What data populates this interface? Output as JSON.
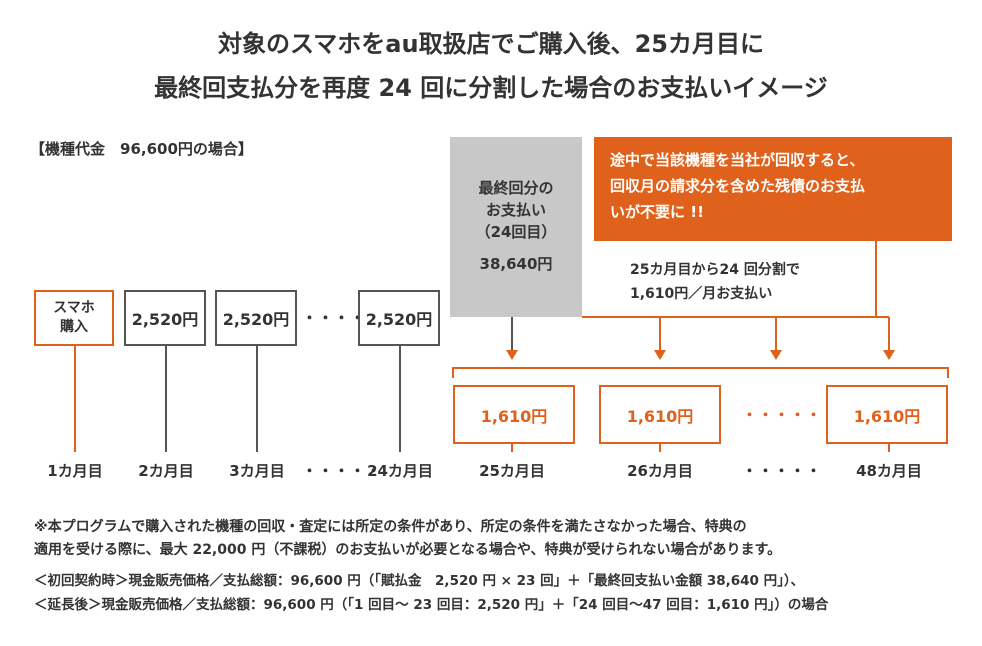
{
  "title": {
    "line1": "対象のスマホをau取扱店でご購入後、25カ月目に",
    "line2": "最終回支払分を再度 24 回に分割した場合のお支払いイメージ"
  },
  "case_label": "【機種代金　96,600円の場合】",
  "purchase_box": {
    "line1": "スマホ",
    "line2": "購入"
  },
  "payments": {
    "box1": "2,520円",
    "box2": "2,520円",
    "box3": "2,520円",
    "dots": "・・・・・"
  },
  "final_payment": {
    "line1": "最終回分の",
    "line2": "お支払い",
    "line3": "（24回目）",
    "amount": "38,640円"
  },
  "notice": {
    "line1": "途中で当該機種を当社が回収すると、",
    "line2": "回収月の請求分を含めた残債のお支払",
    "line3": "いが不要に !!"
  },
  "split_plan": {
    "line1": "25カ月目から24 回分割で",
    "line2": "1,610円／月お支払い"
  },
  "installments": {
    "box1": "1,610円",
    "box2": "1,610円",
    "box3": "1,610円",
    "dots": "・・・・・"
  },
  "months": {
    "m1": "1カ月目",
    "m2": "2カ月目",
    "m3": "3カ月目",
    "dots_left": "・・・・・",
    "m24": "24カ月目",
    "m25": "25カ月目",
    "m26": "26カ月目",
    "dots_right": "・・・・・",
    "m48": "48カ月目"
  },
  "footnotes": {
    "line1": "※本プログラムで購入された機種の回収・査定には所定の条件があり、所定の条件を満たさなかった場合、特典の",
    "line2": "適用を受ける際に、最大 22,000 円（不課税）のお支払いが必要となる場合や、特典が受けられない場合があります。",
    "line3": "＜初回契約時＞現金販売価格／支払総額：96,600 円（「賦払金　2,520 円 × 23 回」＋「最終回支払い金額 38,640 円」）、",
    "line4": "＜延長後＞現金販売価格／支払総額：96,600 円（「1 回目〜 23 回目：2,520 円」＋「24 回目〜47 回目：1,610 円」）の場合"
  },
  "colors": {
    "accent": "#e0611b",
    "gray_fill": "#c8c8c8",
    "text": "#333333"
  }
}
